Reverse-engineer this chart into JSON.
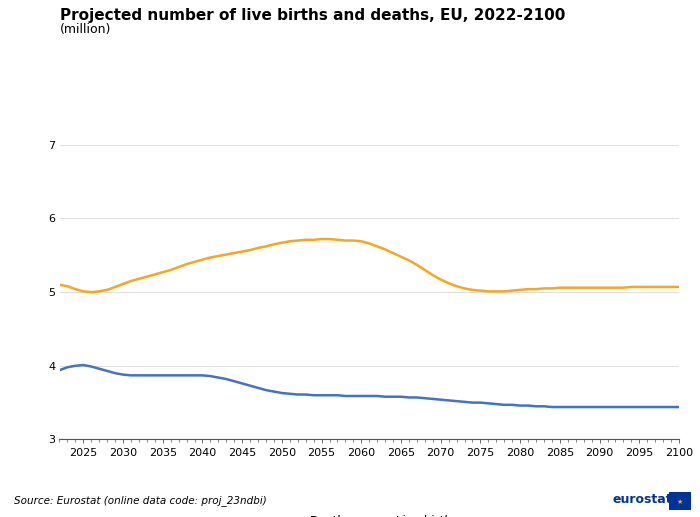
{
  "title": "Projected number of live births and deaths, EU, 2022-2100",
  "subtitle": "(million)",
  "source_text": "Source: Eurostat (online data code: proj_23ndbi)",
  "years": [
    2022,
    2023,
    2024,
    2025,
    2026,
    2027,
    2028,
    2029,
    2030,
    2031,
    2032,
    2033,
    2034,
    2035,
    2036,
    2037,
    2038,
    2039,
    2040,
    2041,
    2042,
    2043,
    2044,
    2045,
    2046,
    2047,
    2048,
    2049,
    2050,
    2051,
    2052,
    2053,
    2054,
    2055,
    2056,
    2057,
    2058,
    2059,
    2060,
    2061,
    2062,
    2063,
    2064,
    2065,
    2066,
    2067,
    2068,
    2069,
    2070,
    2071,
    2072,
    2073,
    2074,
    2075,
    2076,
    2077,
    2078,
    2079,
    2080,
    2081,
    2082,
    2083,
    2084,
    2085,
    2086,
    2087,
    2088,
    2089,
    2090,
    2091,
    2092,
    2093,
    2094,
    2095,
    2096,
    2097,
    2098,
    2099,
    2100
  ],
  "deaths": [
    5.1,
    5.08,
    5.04,
    5.01,
    5.0,
    5.01,
    5.03,
    5.07,
    5.11,
    5.15,
    5.18,
    5.21,
    5.24,
    5.27,
    5.3,
    5.34,
    5.38,
    5.41,
    5.44,
    5.47,
    5.49,
    5.51,
    5.53,
    5.55,
    5.57,
    5.6,
    5.62,
    5.65,
    5.67,
    5.69,
    5.7,
    5.71,
    5.71,
    5.72,
    5.72,
    5.71,
    5.7,
    5.7,
    5.69,
    5.66,
    5.62,
    5.58,
    5.53,
    5.48,
    5.43,
    5.37,
    5.3,
    5.23,
    5.17,
    5.12,
    5.08,
    5.05,
    5.03,
    5.02,
    5.01,
    5.01,
    5.01,
    5.02,
    5.03,
    5.04,
    5.04,
    5.05,
    5.05,
    5.06,
    5.06,
    5.06,
    5.06,
    5.06,
    5.06,
    5.06,
    5.06,
    5.06,
    5.07,
    5.07,
    5.07,
    5.07,
    5.07,
    5.07,
    5.07
  ],
  "live_births": [
    3.94,
    3.98,
    4.0,
    4.01,
    3.99,
    3.96,
    3.93,
    3.9,
    3.88,
    3.87,
    3.87,
    3.87,
    3.87,
    3.87,
    3.87,
    3.87,
    3.87,
    3.87,
    3.87,
    3.86,
    3.84,
    3.82,
    3.79,
    3.76,
    3.73,
    3.7,
    3.67,
    3.65,
    3.63,
    3.62,
    3.61,
    3.61,
    3.6,
    3.6,
    3.6,
    3.6,
    3.59,
    3.59,
    3.59,
    3.59,
    3.59,
    3.58,
    3.58,
    3.58,
    3.57,
    3.57,
    3.56,
    3.55,
    3.54,
    3.53,
    3.52,
    3.51,
    3.5,
    3.5,
    3.49,
    3.48,
    3.47,
    3.47,
    3.46,
    3.46,
    3.45,
    3.45,
    3.44,
    3.44,
    3.44,
    3.44,
    3.44,
    3.44,
    3.44,
    3.44,
    3.44,
    3.44,
    3.44,
    3.44,
    3.44,
    3.44,
    3.44,
    3.44,
    3.44
  ],
  "deaths_color": "#f5a623",
  "births_color": "#4472c4",
  "ylim": [
    3,
    7
  ],
  "yticks": [
    3,
    4,
    5,
    6,
    7
  ],
  "xlim": [
    2022,
    2100
  ],
  "xticks": [
    2025,
    2030,
    2035,
    2040,
    2045,
    2050,
    2055,
    2060,
    2065,
    2070,
    2075,
    2080,
    2085,
    2090,
    2095,
    2100
  ],
  "grid_color": "#d9d9d9",
  "background_color": "#ffffff",
  "title_fontsize": 11,
  "subtitle_fontsize": 9,
  "axis_fontsize": 8,
  "legend_fontsize": 8.5,
  "source_fontsize": 7.5
}
